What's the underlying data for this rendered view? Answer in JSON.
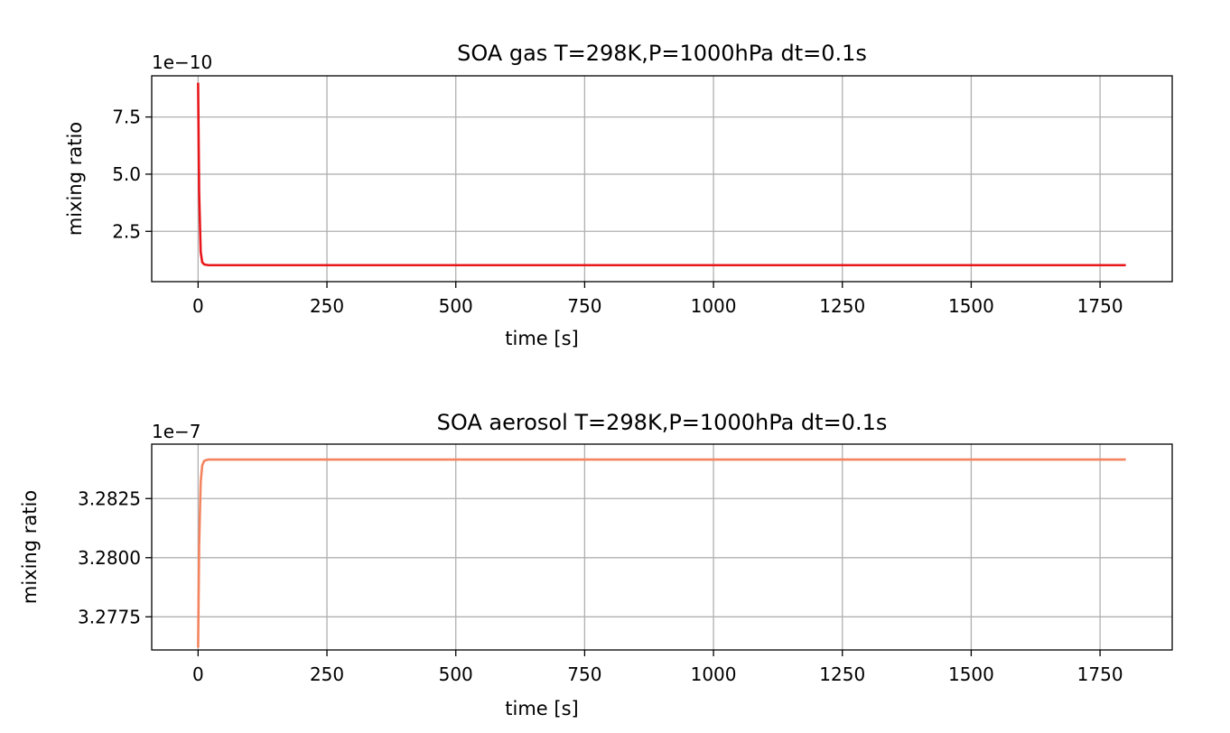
{
  "chart_data": [
    {
      "type": "line",
      "title": "SOA gas T=298K,P=1000hPa dt=0.1s",
      "xlabel": "time [s]",
      "ylabel": "mixing ratio",
      "offset_label": "1e−10",
      "xlim": [
        -90,
        1890
      ],
      "ylim": [
        0.3,
        9.3
      ],
      "xticks": [
        0,
        250,
        500,
        750,
        1000,
        1250,
        1500,
        1750
      ],
      "xtick_labels": [
        "0",
        "250",
        "500",
        "750",
        "1000",
        "1250",
        "1500",
        "1750"
      ],
      "yticks": [
        2.5,
        5.0,
        7.5
      ],
      "ytick_labels": [
        "2.5",
        "5.0",
        "7.5"
      ],
      "grid": true,
      "series": [
        {
          "color": "#e8161a",
          "x": [
            0,
            2,
            5,
            8,
            12,
            20,
            40,
            100,
            500,
            1000,
            1500,
            1800
          ],
          "y": [
            9.0,
            4.2,
            1.6,
            1.15,
            1.05,
            1.02,
            1.02,
            1.02,
            1.02,
            1.02,
            1.02,
            1.02
          ]
        }
      ]
    },
    {
      "type": "line",
      "title": "SOA aerosol T=298K,P=1000hPa dt=0.1s",
      "xlabel": "time [s]",
      "ylabel": "mixing ratio",
      "offset_label": "1e−7",
      "xlim": [
        -90,
        1890
      ],
      "ylim": [
        3.2761,
        3.2848
      ],
      "xticks": [
        0,
        250,
        500,
        750,
        1000,
        1250,
        1500,
        1750
      ],
      "xtick_labels": [
        "0",
        "250",
        "500",
        "750",
        "1000",
        "1250",
        "1500",
        "1750"
      ],
      "yticks": [
        3.2775,
        3.28,
        3.2825
      ],
      "ytick_labels": [
        "3.2775",
        "3.2800",
        "3.2825"
      ],
      "grid": true,
      "series": [
        {
          "color": "#f4845f",
          "x": [
            0,
            2,
            5,
            8,
            12,
            20,
            40,
            100,
            500,
            1000,
            1500,
            1800
          ],
          "y": [
            3.2762,
            3.2805,
            3.2832,
            3.2839,
            3.2841,
            3.28415,
            3.28415,
            3.28415,
            3.28415,
            3.28415,
            3.28415,
            3.28415
          ]
        }
      ]
    }
  ]
}
